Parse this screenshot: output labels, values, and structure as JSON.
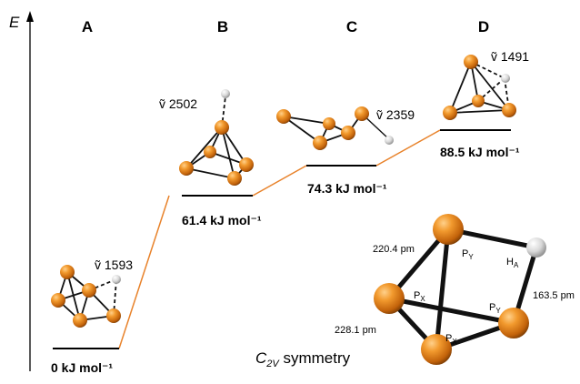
{
  "axis": {
    "energy_label": "E"
  },
  "isomers": [
    {
      "label": "A",
      "energy": "0 kJ mol⁻¹",
      "frequency": "ṽ 1593"
    },
    {
      "label": "B",
      "energy": "61.4 kJ mol⁻¹",
      "frequency": "ṽ 2502"
    },
    {
      "label": "C",
      "energy": "74.3 kJ mol⁻¹",
      "frequency": "ṽ 2359"
    },
    {
      "label": "D",
      "energy": "88.5 kJ mol⁻¹",
      "frequency": "ṽ 1491"
    }
  ],
  "detail": {
    "symmetry_main": "C",
    "symmetry_sub": "2V",
    "symmetry_suffix": " symmetry",
    "bond_lengths": {
      "px_py": "220.4 pm",
      "py_ha": "163.5 pm",
      "px_px": "228.1 pm"
    },
    "atom_labels": {
      "py_top": "P",
      "py_top_sub": "Y",
      "ha": "H",
      "ha_sub": "A",
      "px_left": "P",
      "px_left_sub": "X",
      "py_right": "P",
      "py_right_sub": "Y",
      "px_bottom": "P",
      "px_bottom_sub": "X"
    }
  },
  "colors": {
    "phosphorus": "#e07a10",
    "hydrogen": "#d8d8d8",
    "reaction_path": "#e8822a"
  }
}
